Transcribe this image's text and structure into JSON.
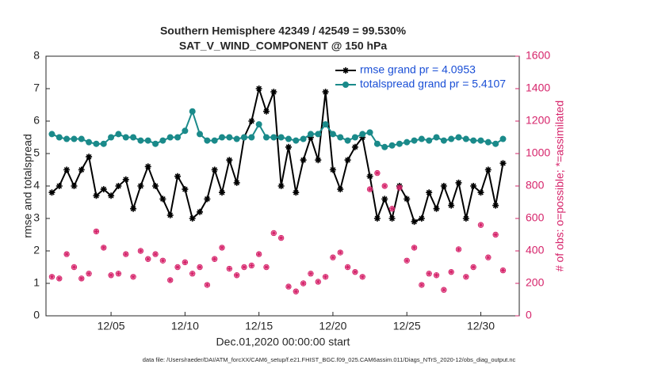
{
  "chart_data": {
    "type": "line",
    "title": "Southern Hemisphere 42349 / 42549 = 99.530%",
    "subtitle": "SAT_V_WIND_COMPONENT @ 150 hPa",
    "xlabel": "Dec.01,2020 00:00:00 start",
    "ylabel": "rmse and totalspread",
    "y2label": "# of obs: o=possible; *=assimilated",
    "footnote": "data file: /Users/raeder/DAI/ATM_forcXX/CAM6_setup/f.e21.FHIST_BGC.f09_025.CAM6assim.011/Diags_NTrS_2020-12/obs_diag_output.nc",
    "xlim": [
      0.6,
      32.6
    ],
    "xticks": [
      {
        "value": 5,
        "label": "12/05"
      },
      {
        "value": 10,
        "label": "12/10"
      },
      {
        "value": 15,
        "label": "12/15"
      },
      {
        "value": 20,
        "label": "12/20"
      },
      {
        "value": 25,
        "label": "12/25"
      },
      {
        "value": 30,
        "label": "12/30"
      }
    ],
    "ylim": [
      0,
      8
    ],
    "yticks": [
      0,
      1,
      2,
      3,
      4,
      5,
      6,
      7,
      8
    ],
    "y2lim": [
      0,
      1600
    ],
    "y2ticks": [
      0,
      200,
      400,
      600,
      800,
      1000,
      1200,
      1400,
      1600
    ],
    "legend": "upper right",
    "x": [
      1,
      1.5,
      2,
      2.5,
      3,
      3.5,
      4,
      4.5,
      5,
      5.5,
      6,
      6.5,
      7,
      7.5,
      8,
      8.5,
      9,
      9.5,
      10,
      10.5,
      11,
      11.5,
      12,
      12.5,
      13,
      13.5,
      14,
      14.5,
      15,
      15.5,
      16,
      16.5,
      17,
      17.5,
      18,
      18.5,
      19,
      19.5,
      20,
      20.5,
      21,
      21.5,
      22,
      22.5,
      23,
      23.5,
      24,
      24.5,
      25,
      25.5,
      26,
      26.5,
      27,
      27.5,
      28,
      28.5,
      29,
      29.5,
      30,
      30.5,
      31,
      31.5
    ],
    "series": [
      {
        "name": "rmse grand pr = 4.0953",
        "color": "#000000",
        "marker": "star",
        "values": [
          3.8,
          4.0,
          4.5,
          4.0,
          4.5,
          4.9,
          3.7,
          3.9,
          3.7,
          4.0,
          4.2,
          3.3,
          4.0,
          4.6,
          4.0,
          3.6,
          3.1,
          4.3,
          3.9,
          3.0,
          3.2,
          3.6,
          4.5,
          3.8,
          4.8,
          4.1,
          5.5,
          6.0,
          7.0,
          6.3,
          6.9,
          4.0,
          5.2,
          3.8,
          4.8,
          5.5,
          4.8,
          6.9,
          4.5,
          3.9,
          4.8,
          5.2,
          5.5,
          4.3,
          3.0,
          3.6,
          3.0,
          4.0,
          3.6,
          2.9,
          3.0,
          3.8,
          3.3,
          4.0,
          3.4,
          4.1,
          3.0,
          4.0,
          3.8,
          4.5,
          3.4,
          4.7
        ]
      },
      {
        "name": "totalspread grand pr = 5.4107",
        "color": "#1a8a8a",
        "marker": "circle",
        "values": [
          5.6,
          5.5,
          5.45,
          5.45,
          5.45,
          5.35,
          5.3,
          5.3,
          5.5,
          5.6,
          5.5,
          5.5,
          5.4,
          5.4,
          5.3,
          5.4,
          5.5,
          5.5,
          5.7,
          6.3,
          5.6,
          5.4,
          5.4,
          5.5,
          5.5,
          5.45,
          5.5,
          5.5,
          5.9,
          5.5,
          5.5,
          5.5,
          5.45,
          5.4,
          5.45,
          5.6,
          5.6,
          5.9,
          5.6,
          5.5,
          5.4,
          5.5,
          5.6,
          5.65,
          5.3,
          5.2,
          5.25,
          5.3,
          5.35,
          5.4,
          5.45,
          5.4,
          5.5,
          5.4,
          5.45,
          5.5,
          5.45,
          5.4,
          5.4,
          5.35,
          5.3,
          5.45
        ]
      },
      {
        "color": "#d6246b",
        "marker": "obs",
        "axis": "y2",
        "values": [
          240,
          230,
          380,
          300,
          230,
          260,
          520,
          420,
          250,
          260,
          380,
          240,
          400,
          350,
          380,
          340,
          220,
          300,
          330,
          260,
          300,
          190,
          350,
          420,
          290,
          250,
          300,
          310,
          380,
          300,
          510,
          480,
          180,
          150,
          200,
          260,
          210,
          240,
          360,
          390,
          300,
          270,
          240,
          780,
          880,
          800,
          660,
          790,
          340,
          420,
          190,
          260,
          250,
          160,
          270,
          410,
          240,
          300,
          560,
          360,
          500,
          280
        ]
      }
    ]
  }
}
